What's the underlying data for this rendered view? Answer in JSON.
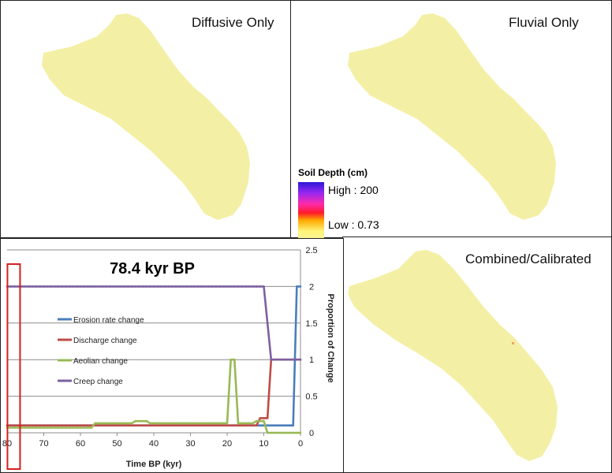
{
  "panels": {
    "diffusive_title": "Diffusive Only",
    "fluvial_title": "Fluvial Only",
    "combined_title": "Combined/Calibrated"
  },
  "legend": {
    "title": "Soil Depth (cm)",
    "high_label": "High : 200",
    "low_label": "Low : 0.73",
    "colors": [
      "#2b17d8",
      "#9a28f0",
      "#ff2aa8",
      "#ff1a2a",
      "#ffa800",
      "#fff57a",
      "#f6f4a8"
    ]
  },
  "map_fill_color": "#f3f0a6",
  "chart_data": {
    "type": "line",
    "title": "78.4 kyr BP",
    "xlabel": "Time BP (kyr)",
    "ylabel": "Proportion of Change",
    "xlim": [
      80,
      0
    ],
    "ylim": [
      0,
      2.5
    ],
    "x_ticks": [
      80,
      70,
      60,
      50,
      40,
      30,
      20,
      10,
      0
    ],
    "y_ticks": [
      0,
      0.5,
      1,
      1.5,
      2,
      2.5
    ],
    "grid": true,
    "legend_position": "left",
    "highlight_box_x": 78.4,
    "series": [
      {
        "name": "Erosion rate change",
        "color": "#4a7ebb",
        "x": [
          80,
          2,
          1,
          0
        ],
        "y": [
          0.1,
          0.1,
          2,
          2
        ]
      },
      {
        "name": "Discharge change",
        "color": "#be4b48",
        "x": [
          80,
          56,
          12,
          11,
          9,
          8,
          0
        ],
        "y": [
          0.1,
          0.1,
          0.1,
          0.2,
          0.2,
          1,
          1
        ]
      },
      {
        "name": "Aeolian change",
        "color": "#98b954",
        "x": [
          80,
          57,
          56,
          46,
          45,
          42,
          41,
          20,
          19,
          18,
          17,
          13,
          12,
          10,
          9,
          0
        ],
        "y": [
          0.07,
          0.07,
          0.13,
          0.13,
          0.16,
          0.16,
          0.13,
          0.13,
          1,
          1,
          0.13,
          0.13,
          0.16,
          0.16,
          0,
          0
        ]
      },
      {
        "name": "Creep change",
        "color": "#7d60a0",
        "x": [
          80,
          10,
          8,
          0
        ],
        "y": [
          2,
          2,
          1,
          1
        ]
      }
    ]
  }
}
